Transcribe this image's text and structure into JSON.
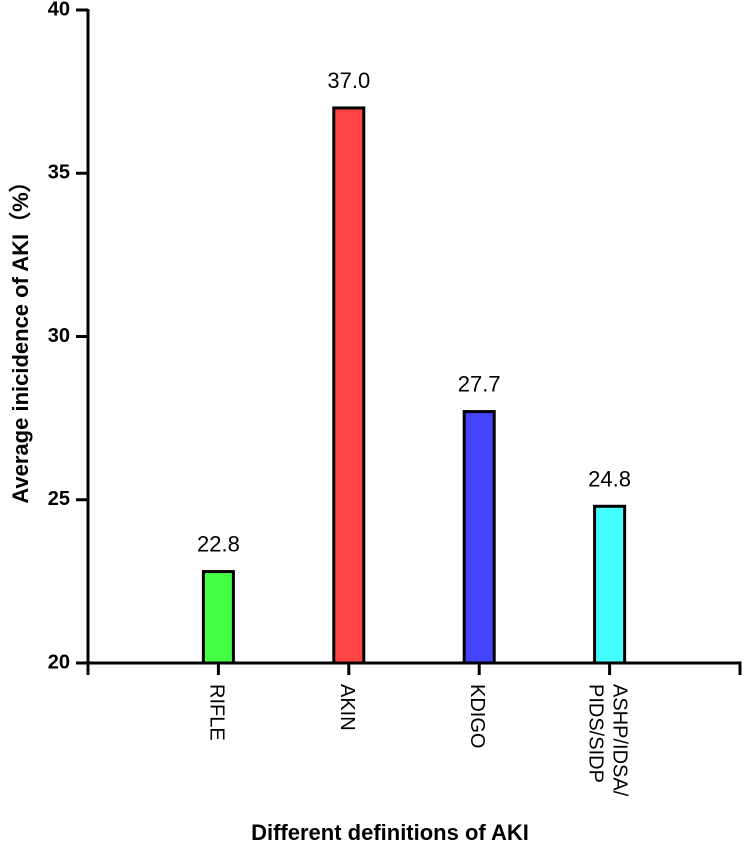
{
  "chart_data": {
    "type": "bar",
    "xlabel": "Different definitions of AKI",
    "ylabel": "Average inicidence of AKI（%）",
    "categories": [
      "RIFLE",
      "AKIN",
      "KDIGO",
      "ASHP/IDSA/ PIDS/SIDP"
    ],
    "values": [
      22.8,
      37.0,
      27.7,
      24.8
    ],
    "value_labels": [
      "22.8",
      "37.0",
      "27.7",
      "24.8"
    ],
    "colors": [
      "#44ff44",
      "#ff4444",
      "#4444ff",
      "#44ffff"
    ],
    "ylim": [
      20,
      40
    ],
    "yticks": [
      20,
      25,
      30,
      35,
      40
    ]
  }
}
